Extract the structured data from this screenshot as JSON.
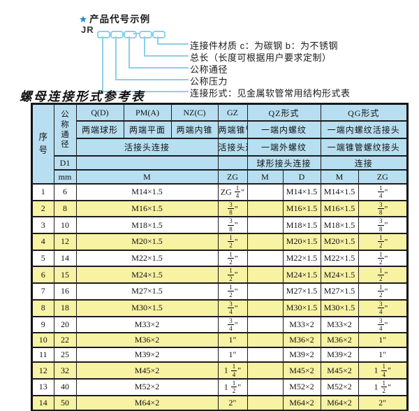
{
  "diagram": {
    "star": "★",
    "title": "产品代号示例",
    "code_prefix": "JR",
    "labels": [
      "连接件材质  c：为碳钢  b：为不锈钢",
      "总长（长度可根据用户要求定制）",
      "公称通径",
      "公称压力",
      "连接形式：见金属软管常用结构形式表"
    ],
    "line_color": "#8ccfe8"
  },
  "table": {
    "title": "螺母连接形式参考表",
    "colors": {
      "header_bg": "#b8dff1",
      "row_bg": "#ffffff",
      "row_alt_bg": "#f8f2a3",
      "border": "#1c1c1c"
    },
    "header": {
      "seq": "序号",
      "dn": "公称通径",
      "d1": "D1",
      "mm": "mm",
      "q": "Q(D)",
      "q_sub": "两端球形",
      "pm": "PM(A)",
      "pm_sub": "两端平面",
      "nz": "NZ(C)",
      "nz_sub": "两端内锥",
      "gz": "GZ",
      "gz_sub": "两端锥管",
      "union_left": "活接头连接",
      "union_gz": "活接头连接",
      "qz": "QZ形式",
      "qz_r2": "一端内螺纹",
      "qz_r3": "一端外螺纹",
      "qz_r4": "球形接头连接",
      "qg": "QG形式",
      "qg_r2": "一端内螺纹活接头",
      "qg_r3": "一端锥管螺纹接头",
      "qg_r4": "连接",
      "m": "M",
      "zg": "ZG",
      "d": "D"
    },
    "rows": [
      [
        "1",
        "6",
        "M14×1.5",
        "ZG 1/4\"",
        "",
        "M14×1.5",
        "M14×1.5",
        "1/4\""
      ],
      [
        "2",
        "8",
        "M16×1.5",
        "3/8\"",
        "",
        "M16×1.5",
        "M16×1.5",
        "3/8\""
      ],
      [
        "3",
        "10",
        "M18×1.5",
        "3/8\"",
        "",
        "M18×1.5",
        "M18×1.5",
        "3/8\""
      ],
      [
        "4",
        "12",
        "M20×1.5",
        "1/2\"",
        "",
        "M20×1.5",
        "M20×1.5",
        "1/2\""
      ],
      [
        "5",
        "14",
        "M22×1.5",
        "1/2\"",
        "",
        "M22×1.5",
        "M22×1.5",
        "1/2\""
      ],
      [
        "6",
        "15",
        "M24×1.5",
        "1/2\"",
        "",
        "M24×1.5",
        "M24×1.5",
        "1/2\""
      ],
      [
        "7",
        "16",
        "M27×1.5",
        "1/2\"",
        "",
        "M27×1.5",
        "M27×1.5",
        "1/2\""
      ],
      [
        "8",
        "18",
        "M30×1.5",
        "3/4\"",
        "",
        "M30×1.5",
        "M30×1.5",
        "3/4\""
      ],
      [
        "9",
        "20",
        "M33×2",
        "3/4\"",
        "",
        "M33×2",
        "M33×2",
        "3/4\""
      ],
      [
        "10",
        "22",
        "M36×2",
        "1\"",
        "",
        "M36×2",
        "M36×2",
        "1\""
      ],
      [
        "11",
        "25",
        "M39×2",
        "1\"",
        "",
        "M39×2",
        "M39×2",
        "1\""
      ],
      [
        "12",
        "32",
        "M45×2",
        "1 1/4\"",
        "",
        "M45×2",
        "M45×2",
        "1 1/4\""
      ],
      [
        "13",
        "40",
        "M52×2",
        "1 1/2\"",
        "",
        "M52×2",
        "M52×2",
        "1 1/2\""
      ],
      [
        "14",
        "50",
        "M64×2",
        "2\"",
        "",
        "M64×2",
        "M64×2",
        "2\""
      ]
    ]
  }
}
